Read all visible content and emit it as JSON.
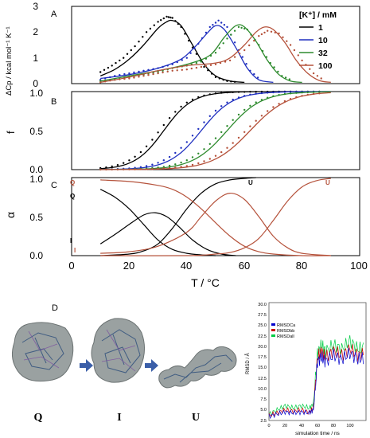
{
  "figure": {
    "panel_labels": {
      "A": "A",
      "B": "B",
      "C": "C",
      "D": "D"
    },
    "x_axis": {
      "label": "T / °C",
      "ticks": [
        "0",
        "20",
        "40",
        "60",
        "80",
        "100"
      ]
    },
    "panel_A": {
      "ylabel": "ΔCp / kcal mol⁻¹ K⁻¹",
      "yticks": [
        "0",
        "1",
        "2",
        "3"
      ]
    },
    "panel_B": {
      "ylabel": "f",
      "yticks": [
        "0.0",
        "0.5",
        "1.0"
      ]
    },
    "panel_C": {
      "ylabel": "α",
      "yticks": [
        "0.0",
        "0.5",
        "1.0"
      ],
      "curve_labels": {
        "Q_red": "Q",
        "Q_black": "Q",
        "I_black": "I",
        "I_red": "I",
        "U_black": "U",
        "U_red": "U"
      }
    },
    "legend": {
      "title": "[K⁺] / mM",
      "items": [
        {
          "label": "1",
          "color": "#000000"
        },
        {
          "label": "10",
          "color": "#1f2fbf"
        },
        {
          "label": "32",
          "color": "#2e8b2e"
        },
        {
          "label": "100",
          "color": "#b5523b"
        }
      ]
    },
    "structures": {
      "labels": [
        "Q",
        "I",
        "U"
      ]
    },
    "rmsd_inset": {
      "ylabel": "RMSD / Å",
      "xlabel": "simulation time / ns",
      "yticks": [
        "2.5",
        "5.0",
        "7.5",
        "10.0",
        "12.5",
        "15.0",
        "17.5",
        "20.0",
        "22.5",
        "25.0",
        "27.5",
        "30.0"
      ],
      "xticks": [
        "0",
        "20",
        "40",
        "60",
        "80",
        "100"
      ],
      "legend": [
        "RMSDCa",
        "RMSDbb",
        "RMSDall"
      ]
    }
  },
  "chart_data": [
    {
      "type": "line",
      "panel": "A",
      "xlabel": "T / °C",
      "ylabel": "ΔCp / kcal mol⁻¹ K⁻¹",
      "xlim": [
        0,
        100
      ],
      "ylim": [
        0,
        3
      ],
      "series": [
        {
          "name": "1",
          "color": "#000000",
          "fit": {
            "x": [
              10,
              15,
              20,
              25,
              30,
              33,
              35,
              38,
              42,
              46,
              50,
              55,
              60
            ],
            "y": [
              0.3,
              0.55,
              0.95,
              1.5,
              2.15,
              2.4,
              2.45,
              2.25,
              1.5,
              0.75,
              0.3,
              0.1,
              0.05
            ]
          },
          "data": {
            "x": [
              10,
              14,
              18,
              22,
              26,
              30,
              33,
              35,
              38,
              42,
              46,
              50,
              54,
              58
            ],
            "y": [
              0.45,
              0.7,
              1.0,
              1.45,
              2.0,
              2.4,
              2.6,
              2.55,
              2.2,
              1.4,
              0.65,
              0.25,
              0.1,
              0.05
            ]
          }
        },
        {
          "name": "10",
          "color": "#1f2fbf",
          "fit": {
            "x": [
              10,
              20,
              30,
              38,
              43,
              47,
              50,
              53,
              57,
              61,
              65,
              70
            ],
            "y": [
              0.2,
              0.35,
              0.6,
              0.95,
              1.45,
              1.95,
              2.25,
              2.1,
              1.4,
              0.6,
              0.15,
              0.05
            ]
          },
          "data": {
            "x": [
              10,
              15,
              20,
              25,
              30,
              35,
              40,
              44,
              48,
              51,
              54,
              58,
              62,
              66
            ],
            "y": [
              0.15,
              0.3,
              0.4,
              0.5,
              0.6,
              0.75,
              1.0,
              1.55,
              2.2,
              2.45,
              2.2,
              1.3,
              0.5,
              0.1
            ]
          }
        },
        {
          "name": "32",
          "color": "#2e8b2e",
          "fit": {
            "x": [
              10,
              20,
              30,
              40,
              48,
              53,
              57,
              60,
              64,
              68,
              72,
              76,
              80
            ],
            "y": [
              0.1,
              0.3,
              0.5,
              0.75,
              1.1,
              1.8,
              2.25,
              2.2,
              1.65,
              0.9,
              0.35,
              0.1,
              0.05
            ]
          },
          "data": {
            "x": [
              10,
              15,
              20,
              25,
              30,
              35,
              40,
              45,
              50,
              54,
              58,
              61,
              65,
              69,
              73,
              77
            ],
            "y": [
              0.1,
              0.15,
              0.25,
              0.35,
              0.45,
              0.6,
              0.7,
              0.85,
              1.2,
              1.75,
              2.2,
              2.1,
              1.5,
              0.8,
              0.3,
              0.1
            ]
          }
        },
        {
          "name": "100",
          "color": "#b5523b",
          "fit": {
            "x": [
              10,
              20,
              30,
              40,
              50,
              55,
              60,
              64,
              67,
              70,
              74,
              78,
              82,
              86,
              90
            ],
            "y": [
              0.05,
              0.25,
              0.5,
              0.7,
              0.8,
              1.0,
              1.5,
              2.0,
              2.2,
              2.1,
              1.6,
              0.9,
              0.4,
              0.12,
              0.05
            ]
          },
          "data": {
            "x": [
              10,
              15,
              20,
              25,
              30,
              35,
              40,
              45,
              50,
              55,
              60,
              65,
              68,
              72,
              76,
              80,
              84,
              88
            ],
            "y": [
              0.05,
              0.15,
              0.2,
              0.3,
              0.4,
              0.5,
              0.55,
              0.65,
              0.75,
              0.9,
              1.3,
              1.85,
              2.05,
              1.95,
              1.5,
              0.9,
              0.4,
              0.1
            ]
          }
        }
      ]
    },
    {
      "type": "line",
      "panel": "B",
      "xlabel": "T / °C",
      "ylabel": "f",
      "xlim": [
        0,
        100
      ],
      "ylim": [
        0,
        1
      ],
      "series": [
        {
          "name": "1",
          "color": "#000000",
          "midpoint": 32,
          "width": 5
        },
        {
          "name": "10",
          "color": "#1f2fbf",
          "midpoint": 45,
          "width": 5.5
        },
        {
          "name": "32",
          "color": "#2e8b2e",
          "midpoint": 54,
          "width": 6
        },
        {
          "name": "100",
          "color": "#b5523b",
          "midpoint": 62,
          "width": 6.5
        }
      ]
    },
    {
      "type": "line",
      "panel": "C",
      "xlabel": "T / °C",
      "ylabel": "α",
      "xlim": [
        0,
        100
      ],
      "ylim": [
        0,
        1
      ],
      "series": [
        {
          "name": "Q",
          "color": "#000000",
          "x": [
            10,
            15,
            20,
            25,
            30,
            35,
            40,
            45,
            50
          ],
          "y": [
            0.85,
            0.75,
            0.6,
            0.4,
            0.2,
            0.08,
            0.03,
            0.01,
            0.0
          ]
        },
        {
          "name": "I",
          "color": "#000000",
          "x": [
            10,
            15,
            20,
            25,
            29,
            33,
            37,
            42,
            47,
            52,
            57
          ],
          "y": [
            0.15,
            0.27,
            0.4,
            0.52,
            0.55,
            0.5,
            0.38,
            0.2,
            0.08,
            0.02,
            0.0
          ]
        },
        {
          "name": "U",
          "color": "#000000",
          "x": [
            10,
            20,
            25,
            30,
            35,
            40,
            45,
            50,
            55,
            60,
            64
          ],
          "y": [
            0.0,
            0.02,
            0.06,
            0.15,
            0.35,
            0.6,
            0.8,
            0.92,
            0.97,
            0.99,
            1.0
          ]
        },
        {
          "name": "Q",
          "color": "#b5523b",
          "x": [
            10,
            20,
            30,
            35,
            40,
            45,
            50,
            55,
            60,
            65,
            70,
            80,
            90
          ],
          "y": [
            0.97,
            0.95,
            0.9,
            0.85,
            0.75,
            0.6,
            0.42,
            0.25,
            0.12,
            0.05,
            0.02,
            0.0,
            0.0
          ]
        },
        {
          "name": "I",
          "color": "#b5523b",
          "x": [
            10,
            20,
            30,
            40,
            45,
            50,
            55,
            60,
            65,
            70,
            75,
            80,
            90
          ],
          "y": [
            0.03,
            0.05,
            0.12,
            0.3,
            0.5,
            0.7,
            0.8,
            0.72,
            0.5,
            0.25,
            0.1,
            0.03,
            0.0
          ]
        },
        {
          "name": "U",
          "color": "#b5523b",
          "x": [
            10,
            40,
            50,
            55,
            60,
            65,
            70,
            75,
            80,
            85,
            90
          ],
          "y": [
            0.0,
            0.0,
            0.02,
            0.04,
            0.1,
            0.22,
            0.45,
            0.7,
            0.88,
            0.96,
            0.99
          ]
        }
      ]
    },
    {
      "type": "line",
      "panel": "D-inset",
      "xlabel": "simulation time / ns",
      "ylabel": "RMSD / Å",
      "xlim": [
        0,
        120
      ],
      "ylim": [
        2,
        30
      ],
      "series": [
        {
          "name": "RMSDCa",
          "color": "#0000cc",
          "x": [
            0,
            10,
            20,
            30,
            40,
            50,
            55,
            60,
            65,
            70,
            80,
            90,
            100,
            110,
            118
          ],
          "y": [
            3.0,
            3.5,
            4.0,
            3.8,
            4.0,
            3.8,
            4.5,
            16.0,
            17.0,
            16.0,
            17.5,
            16.5,
            18.0,
            16.5,
            17.0
          ]
        },
        {
          "name": "RMSDbb",
          "color": "#cc0000",
          "x": [
            0,
            10,
            20,
            30,
            40,
            50,
            55,
            60,
            65,
            70,
            80,
            90,
            100,
            110,
            118
          ],
          "y": [
            3.2,
            3.8,
            4.5,
            4.2,
            4.5,
            4.0,
            5.0,
            17.0,
            18.5,
            17.0,
            18.5,
            17.5,
            19.0,
            17.5,
            18.0
          ]
        },
        {
          "name": "RMSDall",
          "color": "#00cc44",
          "x": [
            0,
            10,
            20,
            30,
            40,
            50,
            55,
            60,
            65,
            70,
            80,
            90,
            100,
            110,
            118
          ],
          "y": [
            3.5,
            4.5,
            5.5,
            5.0,
            5.5,
            5.0,
            6.0,
            18.0,
            20.0,
            18.5,
            20.0,
            19.0,
            21.0,
            19.0,
            19.5
          ]
        }
      ]
    }
  ]
}
